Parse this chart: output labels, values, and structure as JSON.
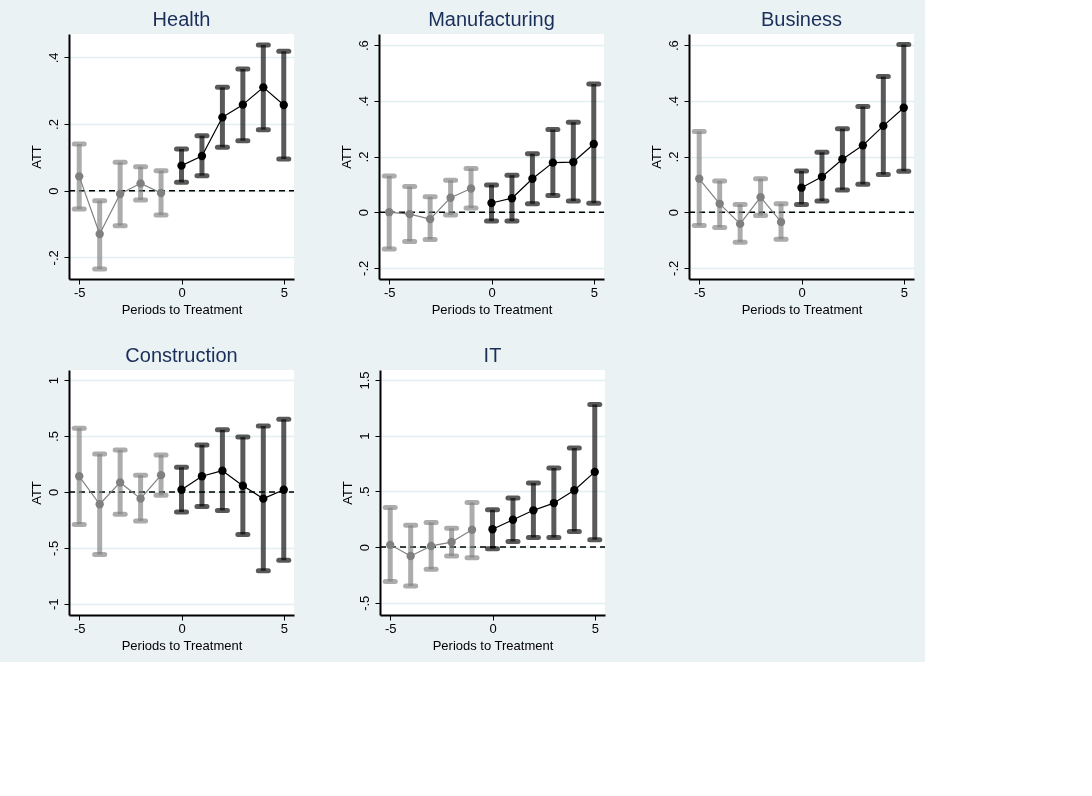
{
  "chart_data": [
    {
      "type": "line",
      "title": "Health",
      "xlabel": "Periods to Treatment",
      "ylabel": "ATT",
      "xlim": [
        -5.5,
        5.5
      ],
      "xticks": [
        -5,
        0,
        5
      ],
      "ylim": [
        -0.265,
        0.47
      ],
      "yticks": [
        {
          "value": -0.2,
          "label": "-.2"
        },
        0,
        {
          "value": 0.2,
          "label": ".2"
        },
        {
          "value": 0.4,
          "label": ".4"
        }
      ],
      "grid": "y",
      "marker": "circle",
      "line_style": "solid",
      "ref_lines": [
        {
          "axis": "y",
          "value": 0,
          "line_style": "dashed",
          "color": "#000000"
        }
      ],
      "series": [
        {
          "color": "#808080",
          "x": [
            -5,
            -4,
            -3,
            -2,
            -1
          ],
          "values": [
            0.043,
            -0.13,
            -0.01,
            0.022,
            -0.007
          ],
          "errors": [
            [
              -0.055,
              0.14
            ],
            [
              -0.235,
              -0.03
            ],
            [
              -0.105,
              0.085
            ],
            [
              -0.028,
              0.072
            ],
            [
              -0.073,
              0.06
            ]
          ]
        },
        {
          "color": "#000000",
          "x": [
            0,
            1,
            2,
            3,
            4,
            5
          ],
          "values": [
            0.075,
            0.104,
            0.22,
            0.258,
            0.31,
            0.257
          ],
          "errors": [
            [
              0.025,
              0.125
            ],
            [
              0.045,
              0.165
            ],
            [
              0.13,
              0.31
            ],
            [
              0.15,
              0.365
            ],
            [
              0.183,
              0.437
            ],
            [
              0.095,
              0.418
            ]
          ]
        }
      ]
    },
    {
      "type": "line",
      "title": "Manufacturing",
      "xlabel": "Periods to Treatment",
      "ylabel": "ATT",
      "xlim": [
        -5.5,
        5.5
      ],
      "xticks": [
        -5,
        0,
        5
      ],
      "ylim": [
        -0.24,
        0.64
      ],
      "yticks": [
        {
          "value": -0.2,
          "label": "-.2"
        },
        0,
        {
          "value": 0.2,
          "label": ".2"
        },
        {
          "value": 0.4,
          "label": ".4"
        },
        {
          "value": 0.6,
          "label": ".6"
        }
      ],
      "grid": "y",
      "marker": "circle",
      "line_style": "solid",
      "ref_lines": [
        {
          "axis": "y",
          "value": 0,
          "line_style": "dashed",
          "color": "#000000"
        }
      ],
      "series": [
        {
          "color": "#808080",
          "x": [
            -5,
            -4,
            -3,
            -2,
            -1
          ],
          "values": [
            0.0,
            -0.007,
            -0.025,
            0.052,
            0.085
          ],
          "errors": [
            [
              -0.132,
              0.13
            ],
            [
              -0.105,
              0.092
            ],
            [
              -0.098,
              0.055
            ],
            [
              -0.01,
              0.115
            ],
            [
              0.015,
              0.157
            ]
          ]
        },
        {
          "color": "#000000",
          "x": [
            0,
            1,
            2,
            3,
            4,
            5
          ],
          "values": [
            0.033,
            0.05,
            0.12,
            0.178,
            0.18,
            0.245
          ],
          "errors": [
            [
              -0.032,
              0.098
            ],
            [
              -0.032,
              0.133
            ],
            [
              0.03,
              0.21
            ],
            [
              0.06,
              0.297
            ],
            [
              0.04,
              0.323
            ],
            [
              0.032,
              0.46
            ]
          ]
        }
      ]
    },
    {
      "type": "line",
      "title": "Business",
      "xlabel": "Periods to Treatment",
      "ylabel": "ATT",
      "xlim": [
        -5.5,
        5.5
      ],
      "xticks": [
        -5,
        0,
        5
      ],
      "ylim": [
        -0.24,
        0.64
      ],
      "yticks": [
        {
          "value": -0.2,
          "label": "-.2"
        },
        0,
        {
          "value": 0.2,
          "label": ".2"
        },
        {
          "value": 0.4,
          "label": ".4"
        },
        {
          "value": 0.6,
          "label": ".6"
        }
      ],
      "grid": "y",
      "marker": "circle",
      "line_style": "solid",
      "ref_lines": [
        {
          "axis": "y",
          "value": 0,
          "line_style": "dashed",
          "color": "#000000"
        }
      ],
      "series": [
        {
          "color": "#808080",
          "x": [
            -5,
            -4,
            -3,
            -2,
            -1
          ],
          "values": [
            0.12,
            0.03,
            -0.042,
            0.054,
            -0.035
          ],
          "errors": [
            [
              -0.048,
              0.29
            ],
            [
              -0.055,
              0.112
            ],
            [
              -0.108,
              0.028
            ],
            [
              -0.012,
              0.12
            ],
            [
              -0.097,
              0.03
            ]
          ]
        },
        {
          "color": "#000000",
          "x": [
            0,
            1,
            2,
            3,
            4,
            5
          ],
          "values": [
            0.088,
            0.127,
            0.19,
            0.24,
            0.31,
            0.375
          ],
          "errors": [
            [
              0.028,
              0.148
            ],
            [
              0.04,
              0.215
            ],
            [
              0.08,
              0.3
            ],
            [
              0.1,
              0.38
            ],
            [
              0.135,
              0.487
            ],
            [
              0.147,
              0.602
            ]
          ]
        }
      ]
    },
    {
      "type": "line",
      "title": "Construction",
      "xlabel": "Periods to Treatment",
      "ylabel": "ATT",
      "xlim": [
        -5.5,
        5.5
      ],
      "xticks": [
        -5,
        0,
        5
      ],
      "ylim": [
        -1.1,
        1.09
      ],
      "yticks": [
        -1,
        {
          "value": -0.5,
          "label": "-.5"
        },
        0,
        {
          "value": 0.5,
          "label": ".5"
        },
        1
      ],
      "grid": "y",
      "marker": "circle",
      "line_style": "solid",
      "ref_lines": [
        {
          "axis": "y",
          "value": 0,
          "line_style": "dashed",
          "color": "#000000"
        }
      ],
      "series": [
        {
          "color": "#808080",
          "x": [
            -5,
            -4,
            -3,
            -2,
            -1
          ],
          "values": [
            0.14,
            -0.11,
            0.085,
            -0.06,
            0.15
          ],
          "errors": [
            [
              -0.29,
              0.57
            ],
            [
              -0.56,
              0.34
            ],
            [
              -0.2,
              0.375
            ],
            [
              -0.26,
              0.15
            ],
            [
              -0.03,
              0.33
            ]
          ]
        },
        {
          "color": "#000000",
          "x": [
            0,
            1,
            2,
            3,
            4,
            5
          ],
          "values": [
            0.02,
            0.14,
            0.19,
            0.055,
            -0.06,
            0.02
          ],
          "errors": [
            [
              -0.18,
              0.22
            ],
            [
              -0.13,
              0.42
            ],
            [
              -0.165,
              0.555
            ],
            [
              -0.38,
              0.49
            ],
            [
              -0.705,
              0.59
            ],
            [
              -0.61,
              0.65
            ]
          ]
        }
      ]
    },
    {
      "type": "line",
      "title": "IT",
      "xlabel": "Periods to Treatment",
      "ylabel": "ATT",
      "xlim": [
        -5.5,
        5.5
      ],
      "xticks": [
        -5,
        0,
        5
      ],
      "ylim": [
        -0.61,
        1.59
      ],
      "yticks": [
        {
          "value": -0.5,
          "label": "-.5"
        },
        0,
        {
          "value": 0.5,
          "label": ".5"
        },
        1,
        1.5
      ],
      "grid": "y",
      "marker": "circle",
      "line_style": "solid",
      "ref_lines": [
        {
          "axis": "y",
          "value": 0,
          "line_style": "dashed",
          "color": "#000000"
        }
      ],
      "series": [
        {
          "color": "#808080",
          "x": [
            -5,
            -4,
            -3,
            -2,
            -1
          ],
          "values": [
            0.02,
            -0.08,
            0.01,
            0.045,
            0.155
          ],
          "errors": [
            [
              -0.31,
              0.355
            ],
            [
              -0.35,
              0.195
            ],
            [
              -0.2,
              0.22
            ],
            [
              -0.08,
              0.17
            ],
            [
              -0.095,
              0.4
            ]
          ]
        },
        {
          "color": "#000000",
          "x": [
            0,
            1,
            2,
            3,
            4,
            5
          ],
          "values": [
            0.16,
            0.245,
            0.33,
            0.395,
            0.51,
            0.675
          ],
          "errors": [
            [
              -0.015,
              0.335
            ],
            [
              0.05,
              0.44
            ],
            [
              0.085,
              0.575
            ],
            [
              0.085,
              0.71
            ],
            [
              0.14,
              0.89
            ],
            [
              0.065,
              1.28
            ]
          ]
        }
      ]
    }
  ]
}
